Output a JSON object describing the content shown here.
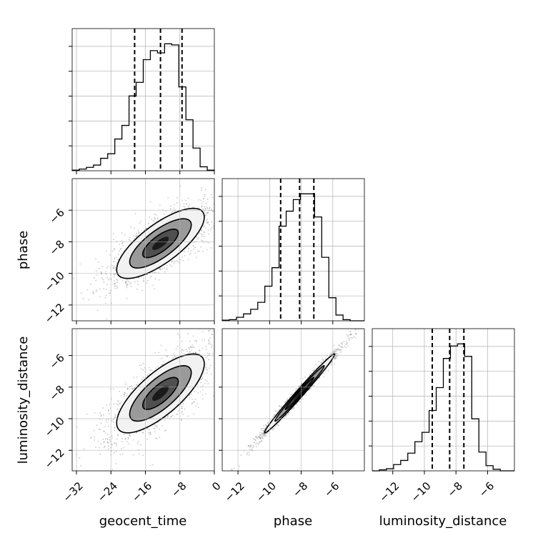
{
  "chart_data": {
    "type": "corner",
    "params": [
      "geocent_time",
      "phase",
      "luminosity_distance"
    ],
    "axis_labels": {
      "x": [
        "geocent_time",
        "phase",
        "luminosity_distance"
      ],
      "y": [
        "phase",
        "luminosity_distance"
      ]
    },
    "ticks": {
      "geocent_time": [
        -32,
        -24,
        -16,
        -8,
        0
      ],
      "phase": [
        -12,
        -10,
        -8,
        -6
      ],
      "luminosity_distance": [
        -12,
        -10,
        -8,
        -6
      ]
    },
    "tick_labels": {
      "geocent_time": [
        "−32",
        "−24",
        "−16",
        "−8",
        "0"
      ],
      "phase": [
        "−12",
        "−10",
        "−8",
        "−6"
      ],
      "luminosity_distance": [
        "−12",
        "−10",
        "−8",
        "−6"
      ]
    },
    "ranges": {
      "geocent_time": [
        -33,
        0
      ],
      "phase": [
        -13,
        -4
      ],
      "luminosity_distance": [
        -13.3,
        -4.3
      ]
    },
    "quantiles": {
      "geocent_time": [
        -18.5,
        -12.5,
        -7.5
      ],
      "phase": [
        -9.3,
        -8.1,
        -7.2
      ],
      "luminosity_distance": [
        -9.5,
        -8.4,
        -7.5
      ]
    },
    "histograms": {
      "geocent_time": {
        "edges": [
          -33,
          -31.35,
          -29.7,
          -28.05,
          -26.4,
          -24.75,
          -23.1,
          -21.45,
          -19.8,
          -18.15,
          -16.5,
          -14.85,
          -13.2,
          -11.55,
          -9.9,
          -8.25,
          -6.6,
          -4.95,
          -3.3,
          -1.65,
          0
        ],
        "counts": [
          0.005,
          0.015,
          0.03,
          0.05,
          0.11,
          0.15,
          0.28,
          0.4,
          0.66,
          0.78,
          0.98,
          1.06,
          1.04,
          1.12,
          1.11,
          0.74,
          0.45,
          0.2,
          0.035,
          0.005
        ]
      },
      "phase": {
        "edges": [
          -13,
          -12.55,
          -12.1,
          -11.65,
          -11.2,
          -10.75,
          -10.3,
          -9.85,
          -9.4,
          -8.95,
          -8.5,
          -8.05,
          -7.6,
          -7.15,
          -6.7,
          -6.25,
          -5.8,
          -5.35,
          -4.9,
          -4.45,
          -4
        ],
        "counts": [
          0.005,
          0.01,
          0.03,
          0.06,
          0.1,
          0.16,
          0.3,
          0.46,
          0.82,
          0.95,
          1.05,
          1.1,
          1.1,
          0.9,
          0.55,
          0.2,
          0.05,
          0.01,
          0,
          0
        ]
      },
      "luminosity_distance": {
        "edges": [
          -13.3,
          -12.85,
          -12.4,
          -11.95,
          -11.5,
          -11.05,
          -10.6,
          -10.15,
          -9.7,
          -9.25,
          -8.8,
          -8.35,
          -7.9,
          -7.45,
          -7.0,
          -6.55,
          -6.1,
          -5.65,
          -5.2,
          -4.75,
          -4.3
        ],
        "counts": [
          0,
          0.01,
          0.02,
          0.06,
          0.1,
          0.17,
          0.28,
          0.37,
          0.58,
          0.8,
          1.08,
          1.2,
          1.22,
          1.1,
          0.5,
          0.18,
          0.05,
          0.015,
          0,
          0
        ]
      }
    },
    "pairs": [
      {
        "x": "geocent_time",
        "y": "phase",
        "mean": [
          -12.5,
          -8.1
        ],
        "std": [
          5.5,
          1.2
        ],
        "corr": 0.75
      },
      {
        "x": "geocent_time",
        "y": "luminosity_distance",
        "mean": [
          -12.5,
          -8.4
        ],
        "std": [
          5.5,
          1.35
        ],
        "corr": 0.75
      },
      {
        "x": "phase",
        "y": "luminosity_distance",
        "mean": [
          -8.1,
          -8.4
        ],
        "std": [
          1.2,
          1.35
        ],
        "corr": 0.99
      }
    ],
    "grid": true,
    "colors": {
      "line": "#000000",
      "grid": "#b0b0b0",
      "quantile_line": "#000000",
      "density_dark": "#000000",
      "density_light": "#e0e0e0"
    }
  }
}
